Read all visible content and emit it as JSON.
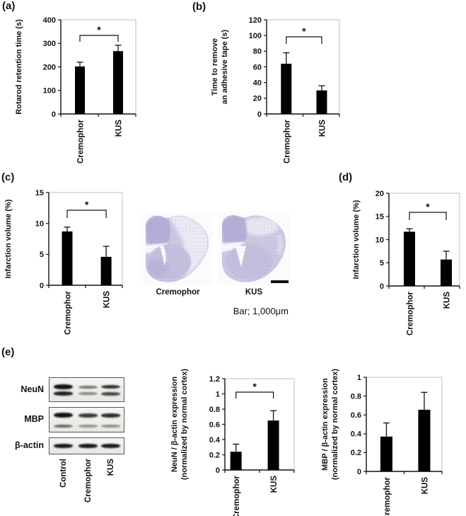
{
  "colors": {
    "bar": "#000000",
    "axis": "#111111",
    "frame": "#bfbfbf",
    "stain_base": "#cdc7e3",
    "stain_dark": "#b3acd5",
    "stain_mid": "#c5bfde",
    "stain_pale": "#edebf5",
    "stain_dot": "#a79fce",
    "tile_bg": "#fbfafd"
  },
  "panels": {
    "a": "(a)",
    "b": "(b)",
    "c": "(c)",
    "d": "(d)",
    "e": "(e)"
  },
  "chart_data": [
    {
      "id": "a",
      "type": "bar",
      "ylabel_lines": [
        "Rotarod retention time (s)"
      ],
      "categories": [
        "Cremophor",
        "KUS"
      ],
      "values": [
        202,
        267
      ],
      "errors_plus": [
        18,
        25
      ],
      "ylim": [
        0,
        400
      ],
      "yticks": [
        0,
        100,
        200,
        300,
        400
      ],
      "grid": false,
      "legend": null,
      "significance": "*"
    },
    {
      "id": "b",
      "type": "bar",
      "ylabel_lines": [
        "Time to remove",
        "an adhesive tape (s)"
      ],
      "categories": [
        "Cremophor",
        "KUS"
      ],
      "values": [
        64,
        30
      ],
      "errors_plus": [
        14,
        6
      ],
      "ylim": [
        0,
        120
      ],
      "yticks": [
        0,
        20,
        40,
        60,
        80,
        100,
        120
      ],
      "grid": false,
      "legend": null,
      "significance": "*"
    },
    {
      "id": "c",
      "type": "bar",
      "ylabel_lines": [
        "Infarction volume (%)"
      ],
      "categories": [
        "Cremophor",
        "KUS"
      ],
      "values": [
        8.7,
        4.6
      ],
      "errors_plus": [
        0.7,
        1.7
      ],
      "ylim": [
        0,
        15
      ],
      "yticks": [
        0,
        5,
        10,
        15
      ],
      "grid": false,
      "legend": null,
      "significance": "*"
    },
    {
      "id": "d",
      "type": "bar",
      "ylabel_lines": [
        "Infarction volume (%)"
      ],
      "categories": [
        "Cremophor",
        "KUS"
      ],
      "values": [
        11.7,
        5.7
      ],
      "errors_plus": [
        0.65,
        1.8
      ],
      "ylim": [
        0,
        20
      ],
      "yticks": [
        0,
        5,
        10,
        15,
        20
      ],
      "grid": false,
      "legend": null,
      "significance": "*"
    },
    {
      "id": "e_neun",
      "type": "bar",
      "ylabel_lines": [
        "NeuN / β-actin expression",
        "(normalized by normal cortex)"
      ],
      "categories": [
        "Cremophor",
        "KUS"
      ],
      "values": [
        0.24,
        0.65
      ],
      "errors_plus": [
        0.1,
        0.13
      ],
      "ylim": [
        0,
        1.2
      ],
      "yticks": [
        0,
        0.2,
        0.4,
        0.6,
        0.8,
        1,
        1.2
      ],
      "grid": false,
      "legend": null,
      "significance": "*"
    },
    {
      "id": "e_mbp",
      "type": "bar",
      "ylabel_lines": [
        "MBP / β-actin expression",
        "(normalized by normal cortex)"
      ],
      "categories": [
        "Cremophor",
        "KUS"
      ],
      "values": [
        0.37,
        0.655
      ],
      "errors_plus": [
        0.145,
        0.185
      ],
      "ylim": [
        0,
        1
      ],
      "yticks": [
        0,
        0.2,
        0.4,
        0.6,
        0.8,
        1
      ],
      "grid": false,
      "legend": null,
      "significance": null
    }
  ],
  "histology": {
    "labels": [
      "Cremophor",
      "KUS"
    ],
    "caption": "Bar; 1,000μm"
  },
  "blots": {
    "lanes": [
      "Control",
      "Cremophor",
      "KUS"
    ],
    "rows": [
      {
        "label": "NeuN",
        "band_positions": [
          0.39,
          0.66
        ],
        "lane_bands": [
          [
            [
              7,
              0.97
            ],
            [
              5.5,
              0.9
            ]
          ],
          [
            [
              4,
              0.55
            ],
            [
              3.5,
              0.45
            ]
          ],
          [
            [
              5.5,
              0.85
            ],
            [
              5,
              0.75
            ]
          ]
        ]
      },
      {
        "label": "MBP",
        "band_positions": [
          0.33,
          0.75
        ],
        "lane_bands": [
          [
            [
              7,
              0.97
            ],
            [
              4.5,
              0.6
            ]
          ],
          [
            [
              5.5,
              0.8
            ],
            [
              3.5,
              0.4
            ]
          ],
          [
            [
              5.5,
              0.85
            ],
            [
              3.5,
              0.42
            ]
          ]
        ]
      },
      {
        "label": "β-actin",
        "band_positions": [
          0.48
        ],
        "lane_bands": [
          [
            [
              6,
              0.95
            ]
          ],
          [
            [
              6,
              0.95
            ]
          ],
          [
            [
              6,
              0.95
            ]
          ]
        ]
      }
    ]
  }
}
